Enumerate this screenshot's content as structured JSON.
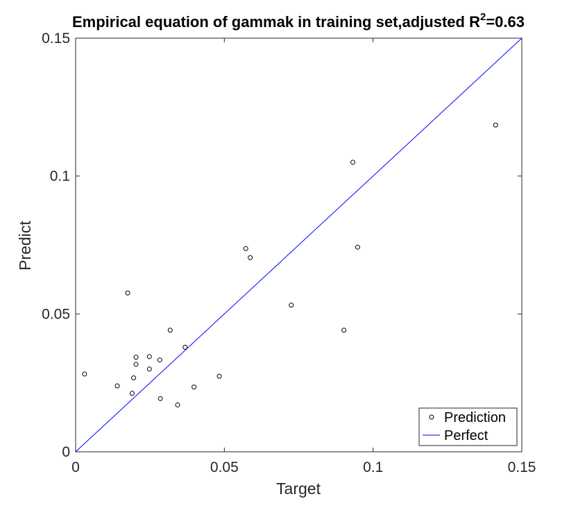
{
  "chart_data": {
    "type": "scatter",
    "title": "Empirical equation of gammak in training set,adjusted R",
    "title_superscript": "2",
    "title_suffix": "=0.63",
    "xlabel": "Target",
    "ylabel": "Predict",
    "xlim": [
      0,
      0.15
    ],
    "ylim": [
      0,
      0.15
    ],
    "x_ticks": [
      0,
      0.05,
      0.1,
      0.15
    ],
    "x_tick_labels": [
      "0",
      "0.05",
      "0.1",
      "0.15"
    ],
    "y_ticks": [
      0,
      0.05,
      0.1,
      0.15
    ],
    "y_tick_labels": [
      "0",
      "0.05",
      "0.1",
      "0.15"
    ],
    "grid": false,
    "legend_position": "bottom-right",
    "series": [
      {
        "name": "Prediction",
        "marker": "circle-open",
        "color": "#000000",
        "points": [
          [
            0.003,
            0.0282
          ],
          [
            0.014,
            0.0239
          ],
          [
            0.0175,
            0.0576
          ],
          [
            0.019,
            0.0212
          ],
          [
            0.0195,
            0.0268
          ],
          [
            0.0203,
            0.0343
          ],
          [
            0.0203,
            0.0317
          ],
          [
            0.0248,
            0.0345
          ],
          [
            0.0248,
            0.03
          ],
          [
            0.0283,
            0.0333
          ],
          [
            0.0285,
            0.0193
          ],
          [
            0.0318,
            0.0441
          ],
          [
            0.0343,
            0.017
          ],
          [
            0.0368,
            0.0379
          ],
          [
            0.0398,
            0.0235
          ],
          [
            0.0483,
            0.0274
          ],
          [
            0.0572,
            0.0737
          ],
          [
            0.0587,
            0.0704
          ],
          [
            0.0725,
            0.0532
          ],
          [
            0.0902,
            0.0441
          ],
          [
            0.0932,
            0.105
          ],
          [
            0.0948,
            0.0742
          ],
          [
            0.1412,
            0.1185
          ]
        ]
      },
      {
        "name": "Perfect",
        "type": "line",
        "color": "#0000FF",
        "points": [
          [
            0,
            0
          ],
          [
            0.15,
            0.15
          ]
        ]
      }
    ]
  }
}
